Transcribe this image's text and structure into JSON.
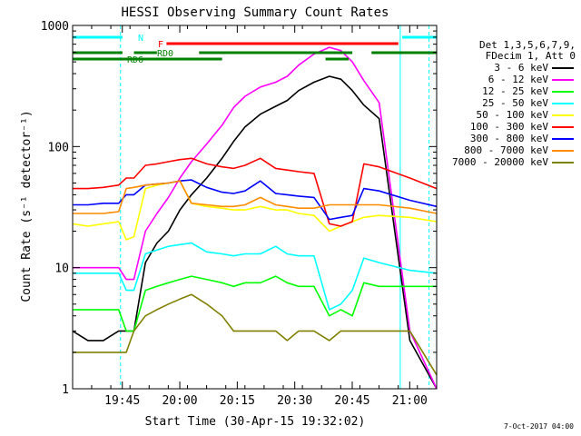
{
  "chart_data": {
    "type": "line",
    "title": "HESSI Observing Summary Count Rates",
    "xlabel": "Start Time (30-Apr-15 19:32:02)",
    "ylabel": "Count Rate (s⁻¹ detector⁻¹)",
    "yscale": "log",
    "ylim": [
      1,
      1000
    ],
    "xlim_minutes": [
      0,
      95
    ],
    "x_ticks": [
      "19:45",
      "20:00",
      "20:15",
      "20:30",
      "20:45",
      "21:00"
    ],
    "y_ticks": [
      "1",
      "10",
      "100",
      "1000"
    ],
    "legend": {
      "header": [
        "Det 1,3,5,6,7,9,",
        "FDecim 1, Att 0"
      ],
      "placement": "right"
    },
    "series": [
      {
        "name": "3 - 6 keV",
        "color": "#000000",
        "values": [
          3,
          2.5,
          2.5,
          3,
          3,
          3,
          11,
          16,
          20,
          30,
          40,
          55,
          80,
          110,
          145,
          185,
          215,
          240,
          290,
          340,
          380,
          360,
          290,
          220,
          170,
          2.5,
          1
        ]
      },
      {
        "name": "6 - 12 keV",
        "color": "#ff00ff",
        "values": [
          10,
          10,
          10,
          10,
          8,
          8,
          20,
          28,
          38,
          55,
          75,
          105,
          150,
          210,
          260,
          310,
          340,
          380,
          470,
          580,
          660,
          620,
          500,
          350,
          230,
          3,
          1
        ]
      },
      {
        "name": "12 - 25 keV",
        "color": "#00ff00",
        "values": [
          4.5,
          4.5,
          4.5,
          4.5,
          3,
          3,
          6.5,
          7,
          7.5,
          8,
          8.5,
          8,
          7.5,
          7,
          7.5,
          7.5,
          8.5,
          7.5,
          7,
          7,
          4,
          4.5,
          4,
          7.5,
          7,
          7,
          7
        ]
      },
      {
        "name": "25 - 50 keV",
        "color": "#00ffff",
        "values": [
          9,
          9,
          9,
          9,
          6.5,
          6.5,
          13,
          14,
          15,
          15.5,
          16,
          13.5,
          13,
          12.5,
          13,
          13,
          15,
          13,
          12.5,
          12.5,
          4.5,
          5,
          6.5,
          12,
          11,
          9.5,
          9
        ]
      },
      {
        "name": "50 - 100 keV",
        "color": "#ffff00",
        "values": [
          23,
          22,
          23,
          24,
          17,
          18,
          45,
          48,
          50,
          52,
          34,
          32,
          31,
          30,
          30,
          32,
          30,
          30,
          28,
          27,
          20,
          22,
          24,
          26,
          27,
          26,
          24
        ]
      },
      {
        "name": "100 - 300 keV",
        "color": "#ff0000",
        "values": [
          45,
          45,
          46,
          48,
          55,
          55,
          70,
          72,
          75,
          78,
          80,
          72,
          68,
          66,
          70,
          80,
          66,
          64,
          62,
          60,
          23,
          22,
          24,
          72,
          68,
          55,
          45
        ]
      },
      {
        "name": "300 - 800 keV",
        "color": "#0000ff",
        "values": [
          33,
          33,
          34,
          34,
          40,
          40,
          48,
          49,
          50,
          52,
          53,
          46,
          42,
          41,
          43,
          52,
          41,
          40,
          39,
          38,
          25,
          26,
          27,
          45,
          43,
          36,
          32
        ]
      },
      {
        "name": "800 - 7000 keV",
        "color": "#ff8c00",
        "values": [
          28,
          28,
          28,
          29,
          45,
          46,
          48,
          49,
          50,
          52,
          34,
          33,
          32,
          32,
          33,
          38,
          33,
          32,
          31,
          31,
          33,
          33,
          33,
          33,
          33,
          31,
          28
        ]
      },
      {
        "name": "7000 - 20000 keV",
        "color": "#808000",
        "values": [
          2,
          2,
          2,
          2,
          2,
          3,
          4,
          4.5,
          5,
          5.5,
          6,
          5,
          4,
          3,
          3,
          3,
          3,
          2.5,
          3,
          3,
          2.5,
          3,
          3,
          3,
          3,
          3,
          1.3
        ]
      }
    ],
    "x_minutes": [
      0,
      4,
      8,
      12,
      14,
      16,
      19,
      22,
      25,
      28,
      31,
      35,
      39,
      42,
      45,
      49,
      53,
      56,
      59,
      63,
      67,
      70,
      73,
      76,
      80,
      88,
      95
    ],
    "flag_bars": [
      {
        "label": "N",
        "color": "#00ffff",
        "segments": [
          [
            0,
            13
          ],
          [
            86,
            95
          ]
        ]
      },
      {
        "label": "F",
        "color": "#ff0000",
        "segments": [
          [
            24.5,
            85
          ]
        ]
      },
      {
        "label": "RD0",
        "color": "#008000",
        "segments": [
          [
            0,
            13
          ],
          [
            16,
            22
          ],
          [
            33,
            73
          ],
          [
            78,
            95
          ]
        ]
      },
      {
        "label": "RD6",
        "color": "#008000",
        "segments": [
          [
            0,
            39
          ],
          [
            66,
            72
          ]
        ]
      }
    ],
    "vertical_markers": [
      {
        "minute": 12.5,
        "color": "#00ffff",
        "style": "dashed"
      },
      {
        "minute": 85.5,
        "color": "#00ffff",
        "style": "solid"
      },
      {
        "minute": 93.0,
        "color": "#00ffff",
        "style": "dashed"
      }
    ],
    "grid": false,
    "datestamp": "7-Oct-2017 04:00"
  }
}
